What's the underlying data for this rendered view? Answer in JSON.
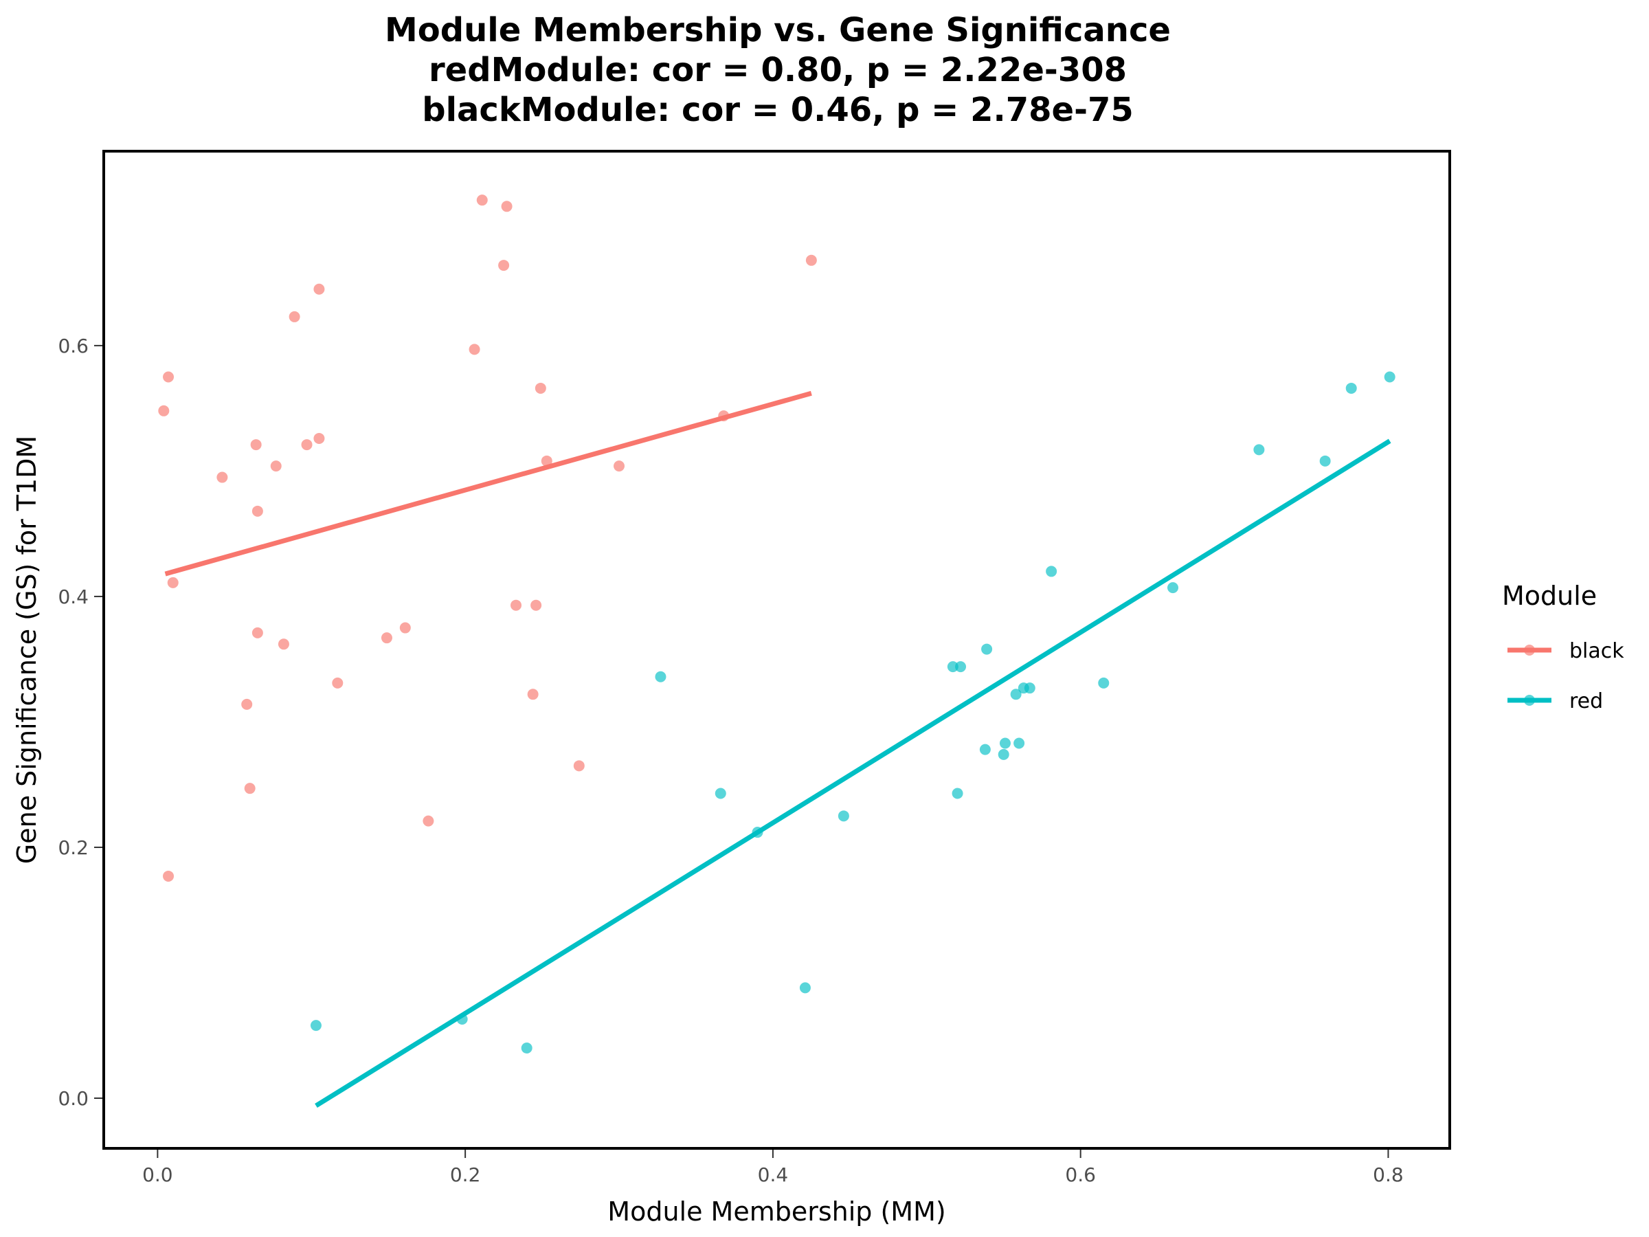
{
  "chart_data": {
    "type": "scatter",
    "title_lines": [
      "Module Membership vs. Gene Significance",
      "redModule: cor = 0.80, p = 2.22e-308",
      "blackModule: cor = 0.46, p = 2.78e-75"
    ],
    "xlabel": "Module Membership (MM)",
    "ylabel": "Gene Significance (GS) for T1DM",
    "xlim": [
      -0.035,
      0.84
    ],
    "ylim": [
      -0.04,
      0.755
    ],
    "x_ticks": [
      0.0,
      0.2,
      0.4,
      0.6,
      0.8
    ],
    "x_tick_labels": [
      "0.0",
      "0.2",
      "0.4",
      "0.6",
      "0.8"
    ],
    "y_ticks": [
      0.0,
      0.2,
      0.4,
      0.6
    ],
    "y_tick_labels": [
      "0.0",
      "0.2",
      "0.4",
      "0.6"
    ],
    "grid": false,
    "legend": {
      "title": "Module",
      "position": "right"
    },
    "series": [
      {
        "name": "black",
        "color": "#F8766D",
        "points": [
          [
            0.004,
            0.548
          ],
          [
            0.007,
            0.575
          ],
          [
            0.01,
            0.411
          ],
          [
            0.007,
            0.177
          ],
          [
            0.042,
            0.495
          ],
          [
            0.058,
            0.314
          ],
          [
            0.06,
            0.247
          ],
          [
            0.064,
            0.521
          ],
          [
            0.065,
            0.468
          ],
          [
            0.065,
            0.371
          ],
          [
            0.077,
            0.504
          ],
          [
            0.082,
            0.362
          ],
          [
            0.089,
            0.623
          ],
          [
            0.097,
            0.521
          ],
          [
            0.105,
            0.645
          ],
          [
            0.105,
            0.526
          ],
          [
            0.117,
            0.331
          ],
          [
            0.149,
            0.367
          ],
          [
            0.161,
            0.375
          ],
          [
            0.176,
            0.221
          ],
          [
            0.206,
            0.597
          ],
          [
            0.211,
            0.716
          ],
          [
            0.225,
            0.664
          ],
          [
            0.227,
            0.711
          ],
          [
            0.233,
            0.393
          ],
          [
            0.244,
            0.322
          ],
          [
            0.246,
            0.393
          ],
          [
            0.249,
            0.566
          ],
          [
            0.253,
            0.508
          ],
          [
            0.274,
            0.265
          ],
          [
            0.3,
            0.504
          ],
          [
            0.368,
            0.544
          ],
          [
            0.425,
            0.668
          ]
        ],
        "fit": [
          [
            0.005,
            0.418
          ],
          [
            0.425,
            0.562
          ]
        ]
      },
      {
        "name": "red",
        "color": "#00BFC4",
        "points": [
          [
            0.103,
            0.058
          ],
          [
            0.198,
            0.063
          ],
          [
            0.24,
            0.04
          ],
          [
            0.327,
            0.336
          ],
          [
            0.366,
            0.243
          ],
          [
            0.39,
            0.212
          ],
          [
            0.421,
            0.088
          ],
          [
            0.446,
            0.225
          ],
          [
            0.517,
            0.344
          ],
          [
            0.52,
            0.243
          ],
          [
            0.522,
            0.344
          ],
          [
            0.538,
            0.278
          ],
          [
            0.539,
            0.358
          ],
          [
            0.55,
            0.274
          ],
          [
            0.551,
            0.283
          ],
          [
            0.558,
            0.322
          ],
          [
            0.56,
            0.283
          ],
          [
            0.563,
            0.327
          ],
          [
            0.567,
            0.327
          ],
          [
            0.581,
            0.42
          ],
          [
            0.615,
            0.331
          ],
          [
            0.66,
            0.407
          ],
          [
            0.716,
            0.517
          ],
          [
            0.759,
            0.508
          ],
          [
            0.776,
            0.566
          ],
          [
            0.801,
            0.575
          ]
        ],
        "fit": [
          [
            0.103,
            -0.006
          ],
          [
            0.801,
            0.524
          ]
        ]
      }
    ]
  }
}
